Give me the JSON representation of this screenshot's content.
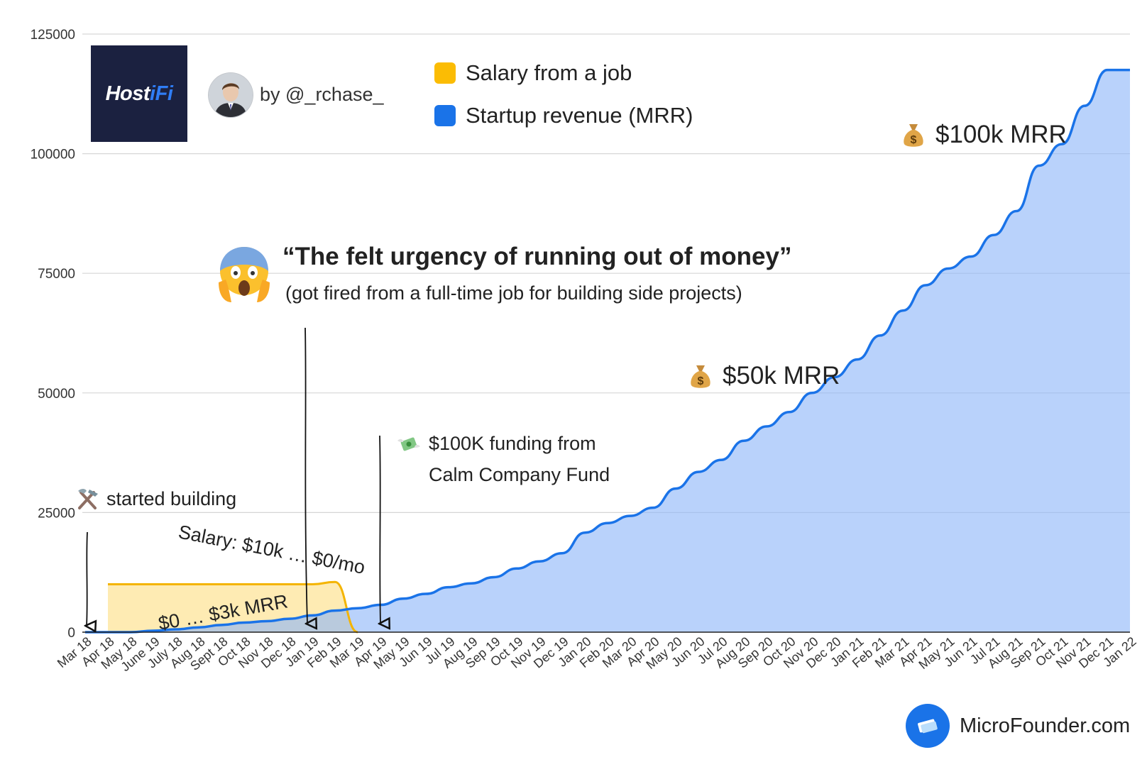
{
  "chart_data": {
    "type": "area",
    "x": [
      "Mar 18",
      "Apr 18",
      "May 18",
      "June 19",
      "July 18",
      "Aug 18",
      "Sept 18",
      "Oct 18",
      "Nov 18",
      "Dec 18",
      "Jan 19",
      "Feb 19",
      "Mar 19",
      "Apr 19",
      "May 19",
      "Jun 19",
      "Jul 19",
      "Aug 19",
      "Sep 19",
      "Oct 19",
      "Nov 19",
      "Dec 19",
      "Jan 20",
      "Feb 20",
      "Mar 20",
      "Apr 20",
      "May 20",
      "Jun 20",
      "Jul 20",
      "Aug 20",
      "Sep 20",
      "Oct 20",
      "Nov 20",
      "Dec 20",
      "Jan 21",
      "Feb 21",
      "Mar 21",
      "Apr 21",
      "May 21",
      "Jun 21",
      "Jul 21",
      "Aug 21",
      "Sep 21",
      "Oct 21",
      "Nov 21",
      "Dec 21",
      "Jan 22"
    ],
    "series": [
      {
        "name": "Salary from a job",
        "color": "#fbbc04",
        "values": [
          null,
          10000,
          10000,
          10000,
          10000,
          10000,
          10000,
          10000,
          10000,
          10000,
          10000,
          10500,
          0,
          null,
          null,
          null,
          null,
          null,
          null,
          null,
          null,
          null,
          null,
          null,
          null,
          null,
          null,
          null,
          null,
          null,
          null,
          null,
          null,
          null,
          null,
          null,
          null,
          null,
          null,
          null,
          null,
          null,
          null,
          null,
          null,
          null,
          null
        ]
      },
      {
        "name": "Startup revenue (MRR)",
        "color": "#1a73e8",
        "values": [
          0,
          0,
          0,
          300,
          600,
          1000,
          1500,
          2000,
          2300,
          2800,
          3500,
          4500,
          5000,
          5700,
          7000,
          8000,
          9400,
          10200,
          11500,
          13300,
          14800,
          16500,
          20800,
          22800,
          24300,
          26000,
          30000,
          33500,
          36000,
          40000,
          43000,
          46000,
          50000,
          53300,
          57000,
          62000,
          67200,
          72500,
          76000,
          78500,
          83000,
          88000,
          97500,
          102000,
          110000,
          117500,
          117500
        ]
      }
    ],
    "ylim": [
      0,
      125000
    ],
    "yticks": [
      "125000",
      "100000",
      "75000",
      "50000",
      "25000",
      "0"
    ],
    "grid": true,
    "legend": "top-center"
  },
  "header": {
    "logo_main": "Host",
    "logo_accent": "iFi",
    "byline": "by @_rchase_"
  },
  "legend": {
    "salary": "Salary from a job",
    "mrr": "Startup revenue (MRR)"
  },
  "annotations": {
    "quote": "“The felt urgency of running out of money”",
    "quote_sub": "(got fired from a full-time job for building side projects)",
    "started": "started building",
    "funding_line1": "$100K funding from",
    "funding_line2": "Calm Company Fund",
    "salary_label": "Salary: $10k … $0/mo",
    "mrr_label": "$0 … $3k MRR",
    "mrr_50k": "$50k MRR",
    "mrr_100k": "$100k MRR"
  },
  "icons": {
    "started": "hammer-and-pick-icon",
    "funding": "money-with-wings-icon",
    "moneybag": "money-bag-icon",
    "scream": "face-screaming-in-fear-icon"
  },
  "brand": {
    "name": "MicroFounder.com",
    "color": "#1a73e8"
  }
}
